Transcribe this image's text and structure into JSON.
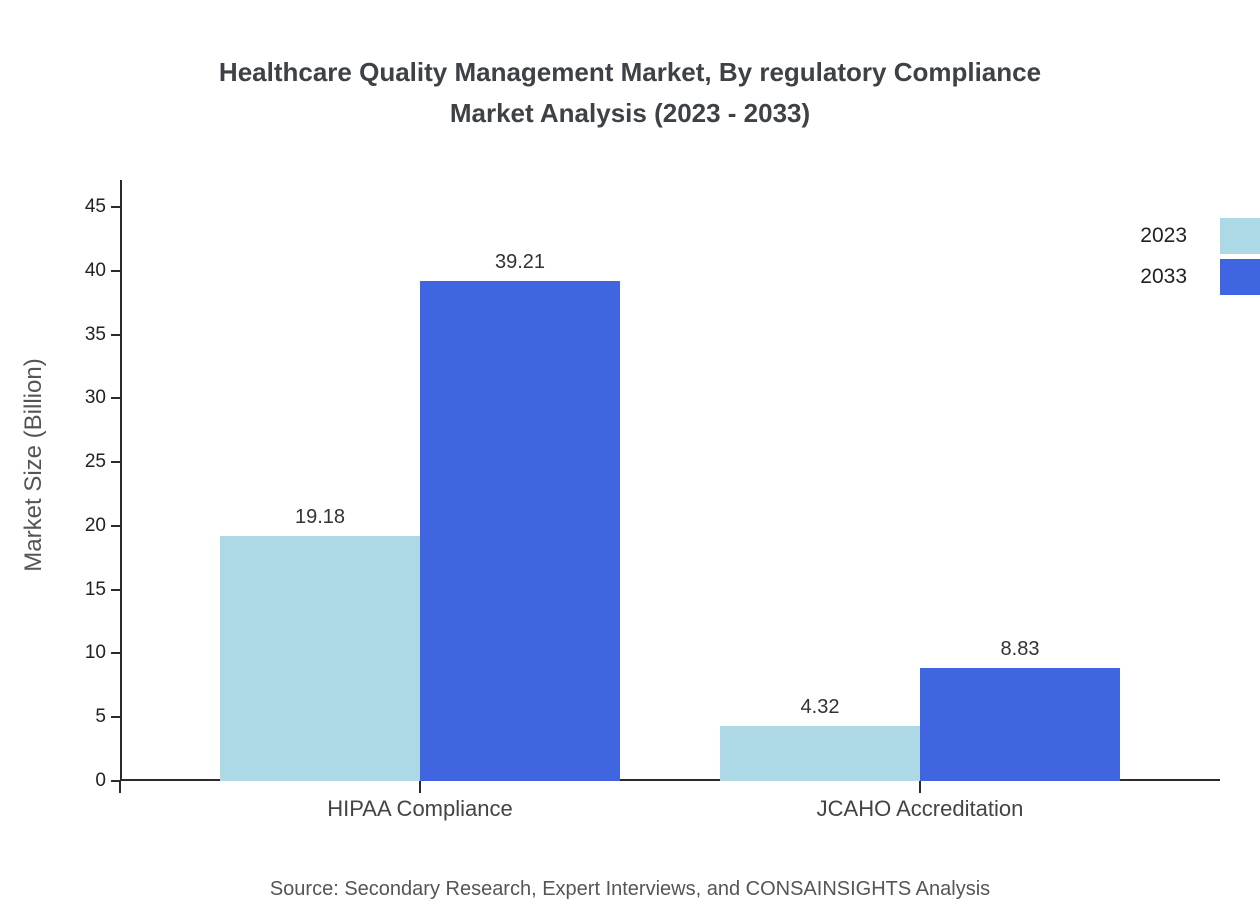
{
  "title": {
    "line1": "Healthcare Quality Management Market, By regulatory Compliance",
    "line2": "Market Analysis (2023 - 2033)"
  },
  "source": "Source: Secondary Research, Expert Interviews, and CONSAINSIGHTS Analysis",
  "chart_data": {
    "type": "bar",
    "title": "Healthcare Quality Management Market, By regulatory Compliance Market Analysis (2023 - 2033)",
    "categories": [
      "HIPAA Compliance",
      "JCAHO Accreditation"
    ],
    "series": [
      {
        "name": "2023",
        "color": "#add8e6",
        "values": [
          19.18,
          4.32
        ]
      },
      {
        "name": "2033",
        "color": "#4065e0",
        "values": [
          39.21,
          8.83
        ]
      }
    ],
    "xlabel": "",
    "ylabel": "Market Size (Billion)",
    "ylim": [
      0,
      45
    ],
    "yticks": [
      0,
      5,
      10,
      15,
      20,
      25,
      30,
      35,
      40,
      45
    ],
    "grid": false,
    "legend_position": "upper right",
    "value_labels": true
  },
  "colors": {
    "bar_2023": "#add8e6",
    "bar_2033": "#4065e0",
    "axis": "#2b2b2b",
    "title_text": "#3d4247",
    "muted_text": "#555555"
  }
}
